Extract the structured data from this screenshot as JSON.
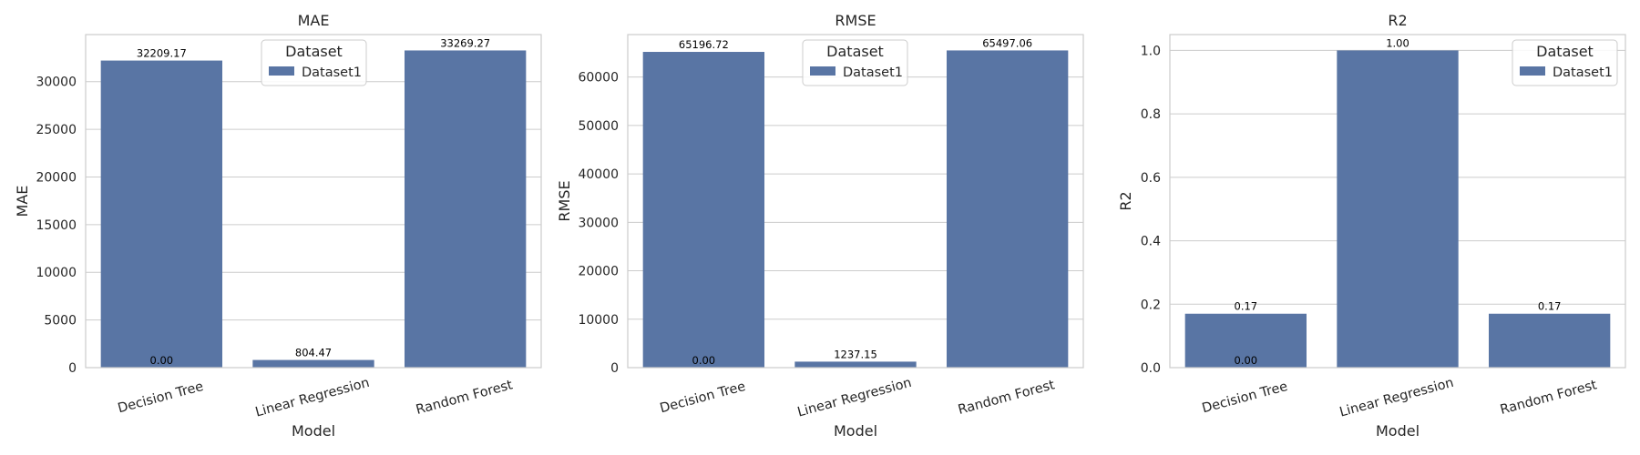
{
  "colors": {
    "bar": "#5975a4",
    "grid": "#cccccc",
    "spine": "#cccccc",
    "text": "#262626",
    "background": "#ffffff"
  },
  "chart_data": [
    {
      "type": "bar",
      "title": "MAE",
      "xlabel": "Model",
      "ylabel": "MAE",
      "categories": [
        "Decision Tree",
        "Linear Regression",
        "Random Forest"
      ],
      "series": [
        {
          "name": "Dataset1",
          "values": [
            32209.17,
            804.47,
            33269.27
          ]
        }
      ],
      "data_labels": [
        "32209.17",
        "804.47",
        "33269.27"
      ],
      "extra_label": "0.00",
      "ylim": [
        0,
        34935
      ],
      "yticks": [
        0,
        5000,
        10000,
        15000,
        20000,
        25000,
        30000
      ],
      "ytick_labels": [
        "0",
        "5000",
        "10000",
        "15000",
        "20000",
        "25000",
        "30000"
      ],
      "grid": "horizontal",
      "legend": {
        "title": "Dataset",
        "entries": [
          "Dataset1"
        ],
        "placement": "upper-center"
      }
    },
    {
      "type": "bar",
      "title": "RMSE",
      "xlabel": "Model",
      "ylabel": "RMSE",
      "categories": [
        "Decision Tree",
        "Linear Regression",
        "Random Forest"
      ],
      "series": [
        {
          "name": "Dataset1",
          "values": [
            65196.72,
            1237.15,
            65497.06
          ]
        }
      ],
      "data_labels": [
        "65196.72",
        "1237.15",
        "65497.06"
      ],
      "extra_label": "0.00",
      "ylim": [
        0,
        68772
      ],
      "yticks": [
        0,
        10000,
        20000,
        30000,
        40000,
        50000,
        60000
      ],
      "ytick_labels": [
        "0",
        "10000",
        "20000",
        "30000",
        "40000",
        "50000",
        "60000"
      ],
      "grid": "horizontal",
      "legend": {
        "title": "Dataset",
        "entries": [
          "Dataset1"
        ],
        "placement": "upper-center"
      }
    },
    {
      "type": "bar",
      "title": "R2",
      "xlabel": "Model",
      "ylabel": "R2",
      "categories": [
        "Decision Tree",
        "Linear Regression",
        "Random Forest"
      ],
      "series": [
        {
          "name": "Dataset1",
          "values": [
            0.17,
            1.0,
            0.17
          ]
        }
      ],
      "data_labels": [
        "0.17",
        "1.00",
        "0.17"
      ],
      "extra_label": "0.00",
      "ylim": [
        0,
        1.05
      ],
      "yticks": [
        0,
        0.2,
        0.4,
        0.6,
        0.8,
        1.0
      ],
      "ytick_labels": [
        "0.0",
        "0.2",
        "0.4",
        "0.6",
        "0.8",
        "1.0"
      ],
      "grid": "horizontal",
      "legend": {
        "title": "Dataset",
        "entries": [
          "Dataset1"
        ],
        "placement": "upper-right"
      }
    }
  ]
}
